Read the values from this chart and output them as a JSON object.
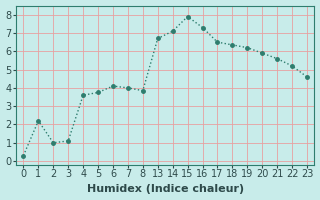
{
  "xlabel": "Humidex (Indice chaleur)",
  "x_labels": [
    "0",
    "1",
    "2",
    "3",
    "4",
    "5",
    "6",
    "7",
    "8",
    "13",
    "14",
    "15",
    "16",
    "17",
    "18",
    "19",
    "20",
    "21",
    "22",
    "23"
  ],
  "y_values": [
    0.3,
    2.2,
    1.0,
    1.1,
    3.6,
    3.75,
    4.1,
    4.0,
    3.85,
    6.7,
    7.1,
    7.9,
    7.3,
    6.5,
    6.35,
    6.2,
    5.9,
    5.6,
    5.2,
    4.6
  ],
  "line_color": "#2e7d6e",
  "marker": "o",
  "markersize": 2.5,
  "linewidth": 1.0,
  "linestyle": "dotted",
  "bg_color": "#c8ecea",
  "grid_color": "#e8a0a0",
  "grid_alpha": 1.0,
  "ylim": [
    -0.2,
    8.5
  ],
  "yticks": [
    0,
    1,
    2,
    3,
    4,
    5,
    6,
    7,
    8
  ],
  "axes_color": "#2e7d6e",
  "tick_fontsize": 7,
  "xlabel_fontsize": 8,
  "label_color": "#2e4a4a"
}
